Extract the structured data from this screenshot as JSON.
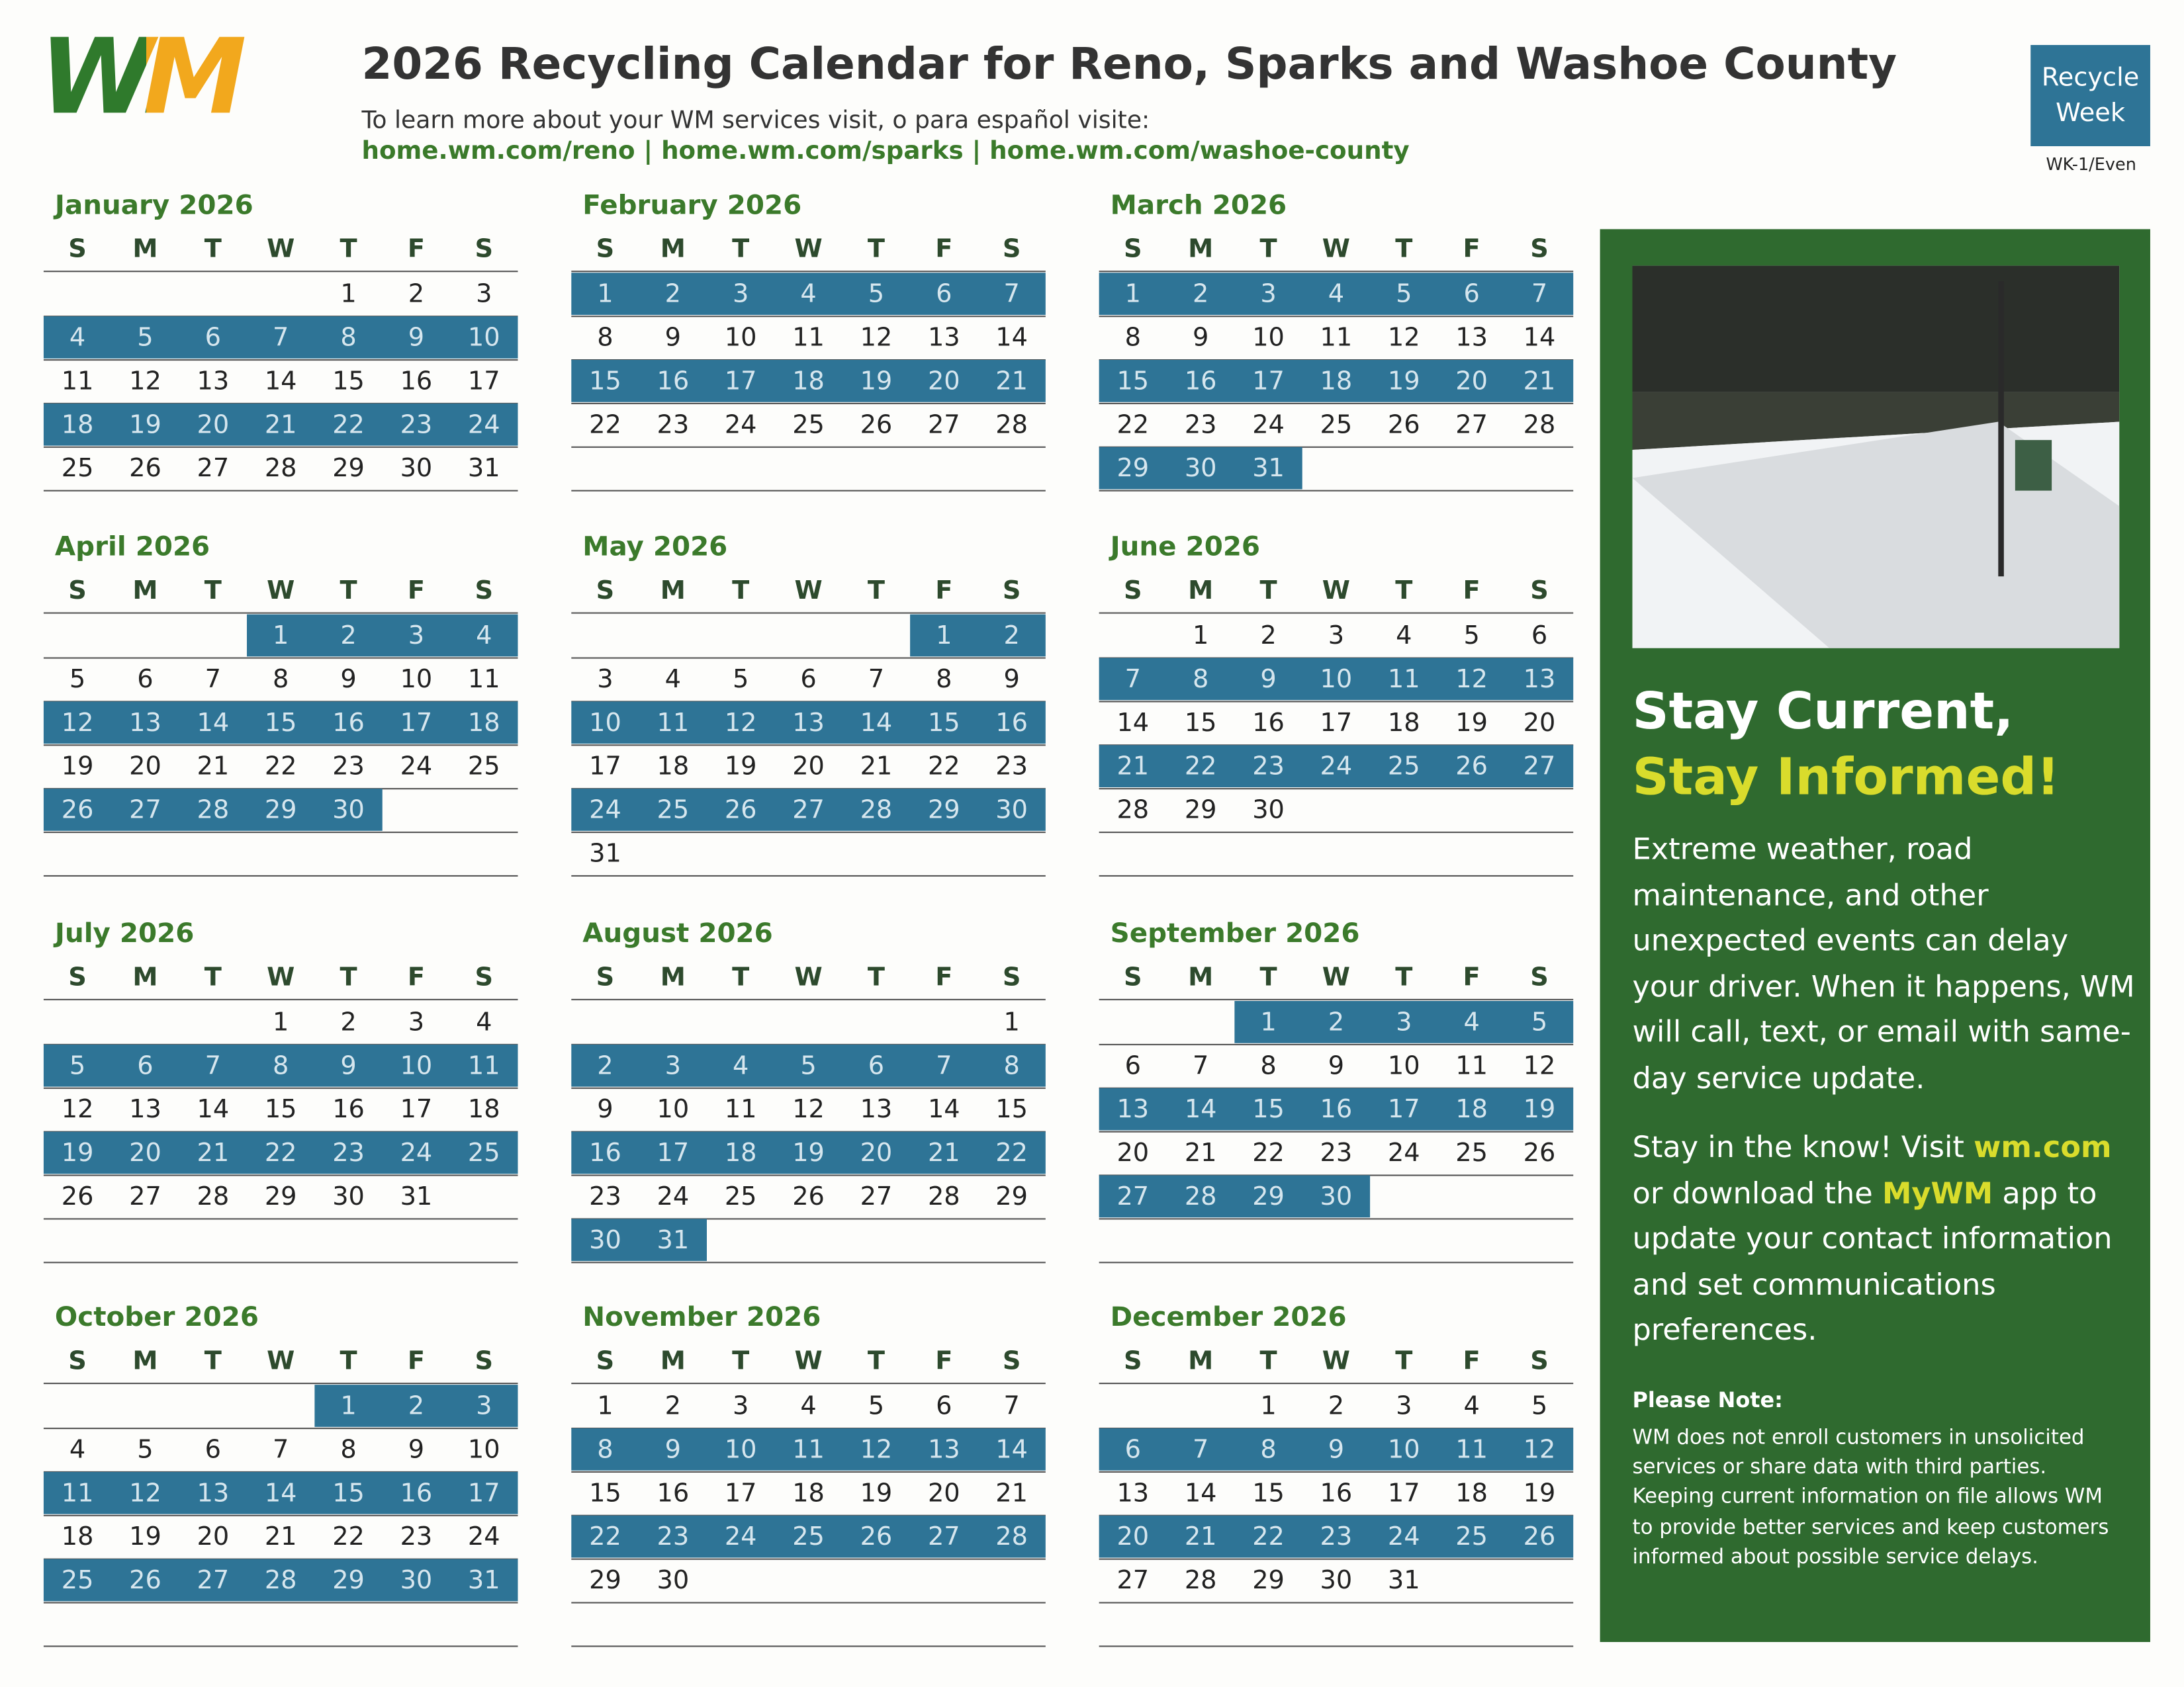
{
  "header": {
    "logo": "WM",
    "title": "2026 Recycling Calendar for Reno, Sparks and Washoe County",
    "subtitle": "To learn more about your WM services visit, o para español visite:",
    "links": "home.wm.com/reno | home.wm.com/sparks | home.wm.com/washoe-county",
    "legend_label": "Recycle Week",
    "legend_code": "WK-1/Even"
  },
  "weekdays": [
    "S",
    "M",
    "T",
    "W",
    "T",
    "F",
    "S"
  ],
  "months": [
    {
      "name": "January 2026",
      "weeks": [
        [
          null,
          null,
          null,
          null,
          1,
          2,
          3
        ],
        [
          4,
          5,
          6,
          7,
          8,
          9,
          10
        ],
        [
          11,
          12,
          13,
          14,
          15,
          16,
          17
        ],
        [
          18,
          19,
          20,
          21,
          22,
          23,
          24
        ],
        [
          25,
          26,
          27,
          28,
          29,
          30,
          31
        ]
      ],
      "recycle": [
        false,
        true,
        false,
        true,
        false
      ]
    },
    {
      "name": "February 2026",
      "weeks": [
        [
          1,
          2,
          3,
          4,
          5,
          6,
          7
        ],
        [
          8,
          9,
          10,
          11,
          12,
          13,
          14
        ],
        [
          15,
          16,
          17,
          18,
          19,
          20,
          21
        ],
        [
          22,
          23,
          24,
          25,
          26,
          27,
          28
        ]
      ],
      "recycle": [
        true,
        false,
        true,
        false
      ]
    },
    {
      "name": "March 2026",
      "weeks": [
        [
          1,
          2,
          3,
          4,
          5,
          6,
          7
        ],
        [
          8,
          9,
          10,
          11,
          12,
          13,
          14
        ],
        [
          15,
          16,
          17,
          18,
          19,
          20,
          21
        ],
        [
          22,
          23,
          24,
          25,
          26,
          27,
          28
        ],
        [
          29,
          30,
          31,
          null,
          null,
          null,
          null
        ]
      ],
      "recycle": [
        true,
        false,
        true,
        false,
        true
      ]
    },
    {
      "name": "April 2026",
      "weeks": [
        [
          null,
          null,
          null,
          1,
          2,
          3,
          4
        ],
        [
          5,
          6,
          7,
          8,
          9,
          10,
          11
        ],
        [
          12,
          13,
          14,
          15,
          16,
          17,
          18
        ],
        [
          19,
          20,
          21,
          22,
          23,
          24,
          25
        ],
        [
          26,
          27,
          28,
          29,
          30,
          null,
          null
        ]
      ],
      "recycle": [
        true,
        false,
        true,
        false,
        true
      ]
    },
    {
      "name": "May 2026",
      "weeks": [
        [
          null,
          null,
          null,
          null,
          null,
          1,
          2
        ],
        [
          3,
          4,
          5,
          6,
          7,
          8,
          9
        ],
        [
          10,
          11,
          12,
          13,
          14,
          15,
          16
        ],
        [
          17,
          18,
          19,
          20,
          21,
          22,
          23
        ],
        [
          24,
          25,
          26,
          27,
          28,
          29,
          30
        ],
        [
          31,
          null,
          null,
          null,
          null,
          null,
          null
        ]
      ],
      "recycle": [
        true,
        false,
        true,
        false,
        true,
        false
      ]
    },
    {
      "name": "June 2026",
      "weeks": [
        [
          null,
          1,
          2,
          3,
          4,
          5,
          6
        ],
        [
          7,
          8,
          9,
          10,
          11,
          12,
          13
        ],
        [
          14,
          15,
          16,
          17,
          18,
          19,
          20
        ],
        [
          21,
          22,
          23,
          24,
          25,
          26,
          27
        ],
        [
          28,
          29,
          30,
          null,
          null,
          null,
          null
        ]
      ],
      "recycle": [
        false,
        true,
        false,
        true,
        false
      ]
    },
    {
      "name": "July 2026",
      "weeks": [
        [
          null,
          null,
          null,
          1,
          2,
          3,
          4
        ],
        [
          5,
          6,
          7,
          8,
          9,
          10,
          11
        ],
        [
          12,
          13,
          14,
          15,
          16,
          17,
          18
        ],
        [
          19,
          20,
          21,
          22,
          23,
          24,
          25
        ],
        [
          26,
          27,
          28,
          29,
          30,
          31,
          null
        ]
      ],
      "recycle": [
        false,
        true,
        false,
        true,
        false
      ]
    },
    {
      "name": "August 2026",
      "weeks": [
        [
          null,
          null,
          null,
          null,
          null,
          null,
          1
        ],
        [
          2,
          3,
          4,
          5,
          6,
          7,
          8
        ],
        [
          9,
          10,
          11,
          12,
          13,
          14,
          15
        ],
        [
          16,
          17,
          18,
          19,
          20,
          21,
          22
        ],
        [
          23,
          24,
          25,
          26,
          27,
          28,
          29
        ],
        [
          30,
          31,
          null,
          null,
          null,
          null,
          null
        ]
      ],
      "recycle": [
        false,
        true,
        false,
        true,
        false,
        true
      ]
    },
    {
      "name": "September 2026",
      "weeks": [
        [
          null,
          null,
          1,
          2,
          3,
          4,
          5
        ],
        [
          6,
          7,
          8,
          9,
          10,
          11,
          12
        ],
        [
          13,
          14,
          15,
          16,
          17,
          18,
          19
        ],
        [
          20,
          21,
          22,
          23,
          24,
          25,
          26
        ],
        [
          27,
          28,
          29,
          30,
          null,
          null,
          null
        ]
      ],
      "recycle": [
        true,
        false,
        true,
        false,
        true
      ]
    },
    {
      "name": "October 2026",
      "weeks": [
        [
          null,
          null,
          null,
          null,
          1,
          2,
          3
        ],
        [
          4,
          5,
          6,
          7,
          8,
          9,
          10
        ],
        [
          11,
          12,
          13,
          14,
          15,
          16,
          17
        ],
        [
          18,
          19,
          20,
          21,
          22,
          23,
          24
        ],
        [
          25,
          26,
          27,
          28,
          29,
          30,
          31
        ]
      ],
      "recycle": [
        true,
        false,
        true,
        false,
        true
      ]
    },
    {
      "name": "November 2026",
      "weeks": [
        [
          1,
          2,
          3,
          4,
          5,
          6,
          7
        ],
        [
          8,
          9,
          10,
          11,
          12,
          13,
          14
        ],
        [
          15,
          16,
          17,
          18,
          19,
          20,
          21
        ],
        [
          22,
          23,
          24,
          25,
          26,
          27,
          28
        ],
        [
          29,
          30,
          null,
          null,
          null,
          null,
          null
        ]
      ],
      "recycle": [
        false,
        true,
        false,
        true,
        false
      ]
    },
    {
      "name": "December 2026",
      "weeks": [
        [
          null,
          null,
          1,
          2,
          3,
          4,
          5
        ],
        [
          6,
          7,
          8,
          9,
          10,
          11,
          12
        ],
        [
          13,
          14,
          15,
          16,
          17,
          18,
          19
        ],
        [
          20,
          21,
          22,
          23,
          24,
          25,
          26
        ],
        [
          27,
          28,
          29,
          30,
          31,
          null,
          null
        ]
      ],
      "recycle": [
        false,
        true,
        false,
        true,
        false
      ]
    }
  ],
  "sidebar": {
    "heading_1": "Stay Current,",
    "heading_2": "Stay Informed!",
    "paragraph_1": "Extreme weather, road maintenance, and other unexpected events can delay your driver. When it happens, WM will call, text, or email with same-day service update.",
    "paragraph_2": [
      {
        "text": "Stay in the know! Visit ",
        "bold": false
      },
      {
        "text": "wm.com",
        "bold": true
      },
      {
        "text": " or download the ",
        "bold": false
      },
      {
        "text": "MyWM",
        "bold": true
      },
      {
        "text": " app to update your contact information and set communications preferences.",
        "bold": false
      }
    ],
    "note_title": "Please Note:",
    "note_text": "WM does not enroll customers in unsolicited services or share data with third parties. Keeping current information on file allows WM to provide better services and keep customers informed about possible service delays."
  }
}
